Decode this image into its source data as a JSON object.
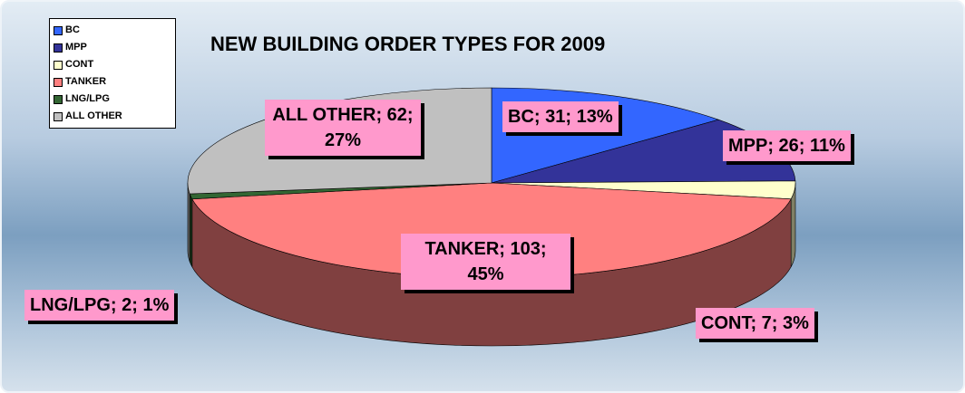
{
  "chart_data": {
    "type": "pie3d",
    "title": "NEW BUILDING ORDER TYPES FOR 2009",
    "categories": [
      "BC",
      "MPP",
      "CONT",
      "TANKER",
      "LNG/LPG",
      "ALL OTHER"
    ],
    "values": [
      31,
      26,
      7,
      103,
      2,
      62
    ],
    "value_labels": [
      "BC; 31; 13%",
      "MPP; 26; 11%",
      "CONT; 7; 3%",
      "TANKER; 103; 45%",
      "LNG/LPG; 2; 1%",
      "ALL OTHER; 62; 27%"
    ],
    "colors": [
      "#3366ff",
      "#333399",
      "#ffffcc",
      "#ff8080",
      "#336633",
      "#c0c0c0"
    ],
    "legend": "top-left"
  }
}
